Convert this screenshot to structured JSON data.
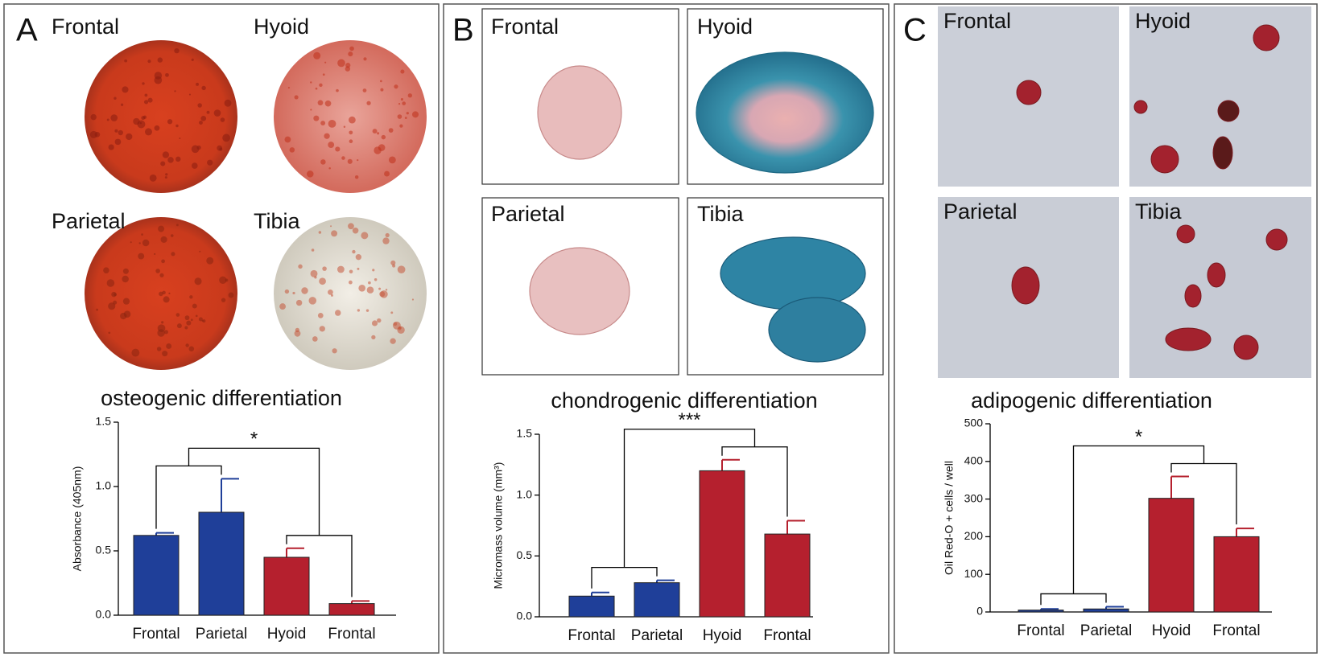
{
  "panels": [
    {
      "letter": "A",
      "image_labels": [
        "Frontal",
        "Hyoid",
        "Parietal",
        "Tibia"
      ]
    },
    {
      "letter": "B",
      "image_labels": [
        "Frontal",
        "Hyoid",
        "Parietal",
        "Tibia"
      ]
    },
    {
      "letter": "C",
      "image_labels": [
        "Frontal",
        "Hyoid",
        "Parietal",
        "Tibia"
      ]
    }
  ],
  "chart_data": [
    {
      "type": "bar",
      "title": "osteogenic differentiation",
      "ylabel": "Absorbance (405nm)",
      "categories": [
        "Frontal",
        "Parietal",
        "Hyoid",
        "Frontal"
      ],
      "values": [
        0.62,
        0.8,
        0.45,
        0.09
      ],
      "errors": [
        0.02,
        0.26,
        0.07,
        0.02
      ],
      "colors": [
        "#1f3f99",
        "#1f3f99",
        "#b5202e",
        "#b5202e"
      ],
      "ylim": [
        0,
        1.5
      ],
      "yticks": [
        {
          "value": 0,
          "label": "0.0"
        },
        0.5,
        {
          "value": 1,
          "label": "1.0"
        },
        1.5
      ],
      "annotation": "*"
    },
    {
      "type": "bar",
      "title": "chondrogenic differentiation",
      "ylabel": "Micromass volume (mm³)",
      "categories": [
        "Frontal",
        "Parietal",
        "Hyoid",
        "Frontal"
      ],
      "values": [
        0.17,
        0.28,
        1.2,
        0.68
      ],
      "errors": [
        0.03,
        0.02,
        0.09,
        0.11
      ],
      "colors": [
        "#1f3f99",
        "#1f3f99",
        "#b5202e",
        "#b5202e"
      ],
      "ylim": [
        0,
        1.5
      ],
      "yticks": [
        {
          "value": 0,
          "label": "0.0"
        },
        0.5,
        {
          "value": 1,
          "label": "1.0"
        },
        1.5
      ],
      "annotation": "***"
    },
    {
      "type": "bar",
      "title": "adipogenic differentiation",
      "ylabel": "Oil Red-O + cells / well",
      "categories": [
        "Frontal",
        "Parietal",
        "Hyoid",
        "Frontal"
      ],
      "values": [
        5,
        8,
        302,
        200
      ],
      "errors": [
        3,
        6,
        58,
        22
      ],
      "colors": [
        "#1f3f99",
        "#1f3f99",
        "#b5202e",
        "#b5202e"
      ],
      "ylim": [
        0,
        500
      ],
      "yticks": [
        0,
        100,
        200,
        300,
        400,
        500
      ],
      "annotation": "*"
    }
  ]
}
